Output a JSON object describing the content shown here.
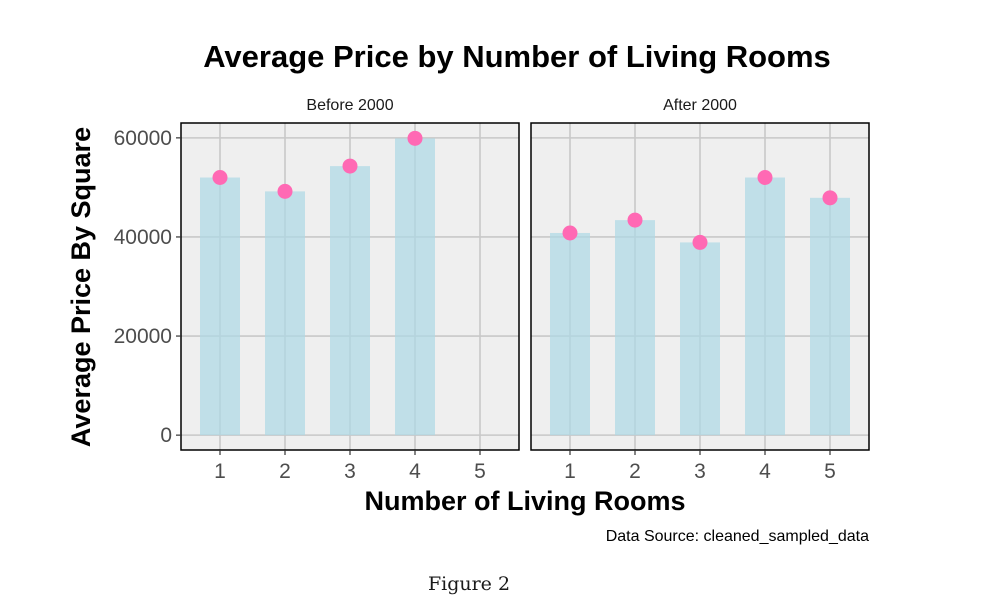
{
  "chart_data": {
    "type": "bar",
    "title": "Average Price by Number of Living Rooms",
    "xlabel": "Number of Living Rooms",
    "ylabel": "Average Price By Square",
    "caption": "Data Source: cleaned_sampled_data",
    "figure_label": "Figure 2",
    "categories": [
      "1",
      "2",
      "3",
      "4",
      "5"
    ],
    "ylim": [
      -3000,
      63000
    ],
    "yticks": [
      "0",
      "20000",
      "40000",
      "60000"
    ],
    "grid": true,
    "panel_background": "#efefef",
    "bar_color": "#add8e6",
    "point_color": "#ff69b4",
    "panels": [
      {
        "label": "Before 2000",
        "values": [
          52000,
          49200,
          54300,
          59900,
          null
        ]
      },
      {
        "label": "After 2000",
        "values": [
          40800,
          43400,
          38900,
          52000,
          47900
        ]
      }
    ]
  }
}
